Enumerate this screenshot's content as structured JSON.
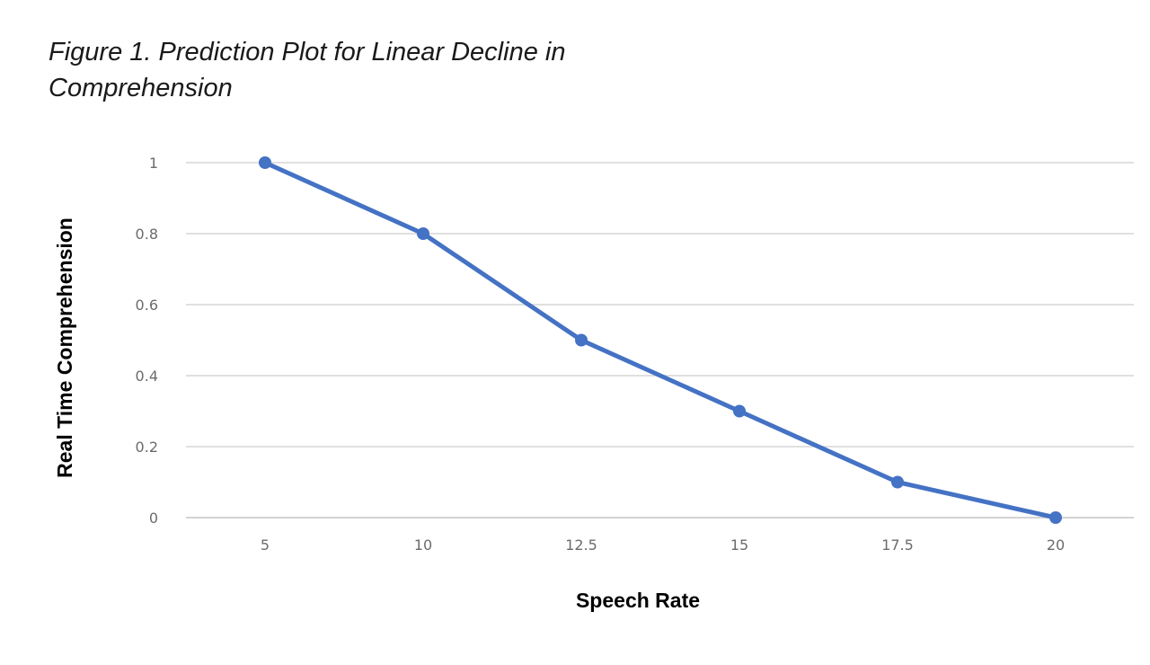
{
  "figure": {
    "caption": "Figure 1. Prediction Plot for Linear Decline in Comprehension"
  },
  "chart_data": {
    "type": "line",
    "xlabel": "Speech Rate",
    "ylabel": "Real Time Comprehension",
    "categories": [
      "5",
      "10",
      "12.5",
      "15",
      "17.5",
      "20"
    ],
    "series": [
      {
        "values": [
          1,
          0.8,
          0.5,
          0.3,
          0.1,
          0
        ]
      }
    ],
    "y_ticks": [
      "0",
      "0.2",
      "0.4",
      "0.6",
      "0.8",
      "1"
    ],
    "ylim": [
      0,
      1
    ],
    "grid": true,
    "legend": "none",
    "line_color": "#4472c4"
  }
}
